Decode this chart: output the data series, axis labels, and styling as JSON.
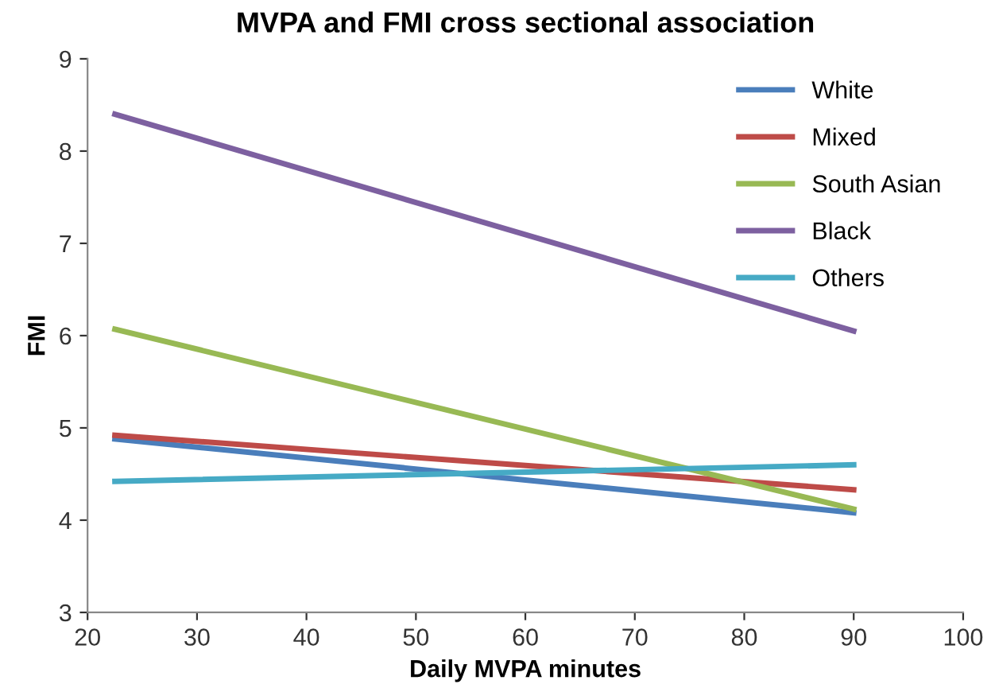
{
  "chart_data": {
    "type": "line",
    "title": "MVPA and FMI cross sectional association",
    "xlabel": "Daily MVPA minutes",
    "ylabel": "FMI",
    "x": [
      22.5,
      90
    ],
    "series": [
      {
        "name": "White",
        "color": "#4a7ebb",
        "values": [
          4.88,
          4.08
        ]
      },
      {
        "name": "Mixed",
        "color": "#be4b48",
        "values": [
          4.92,
          4.33
        ]
      },
      {
        "name": "South Asian",
        "color": "#98b954",
        "values": [
          6.07,
          4.12
        ]
      },
      {
        "name": "Black",
        "color": "#7d60a0",
        "values": [
          8.4,
          6.05
        ]
      },
      {
        "name": "Others",
        "color": "#46aac5",
        "values": [
          4.42,
          4.6
        ]
      }
    ],
    "xlim": [
      20,
      100
    ],
    "xticks": [
      20,
      30,
      40,
      50,
      60,
      70,
      80,
      90,
      100
    ],
    "ylim": [
      3,
      9
    ],
    "yticks": [
      3,
      4,
      5,
      6,
      7,
      8,
      9
    ],
    "grid": false,
    "legend": "top right",
    "marker": "none",
    "line_style": "solid"
  }
}
